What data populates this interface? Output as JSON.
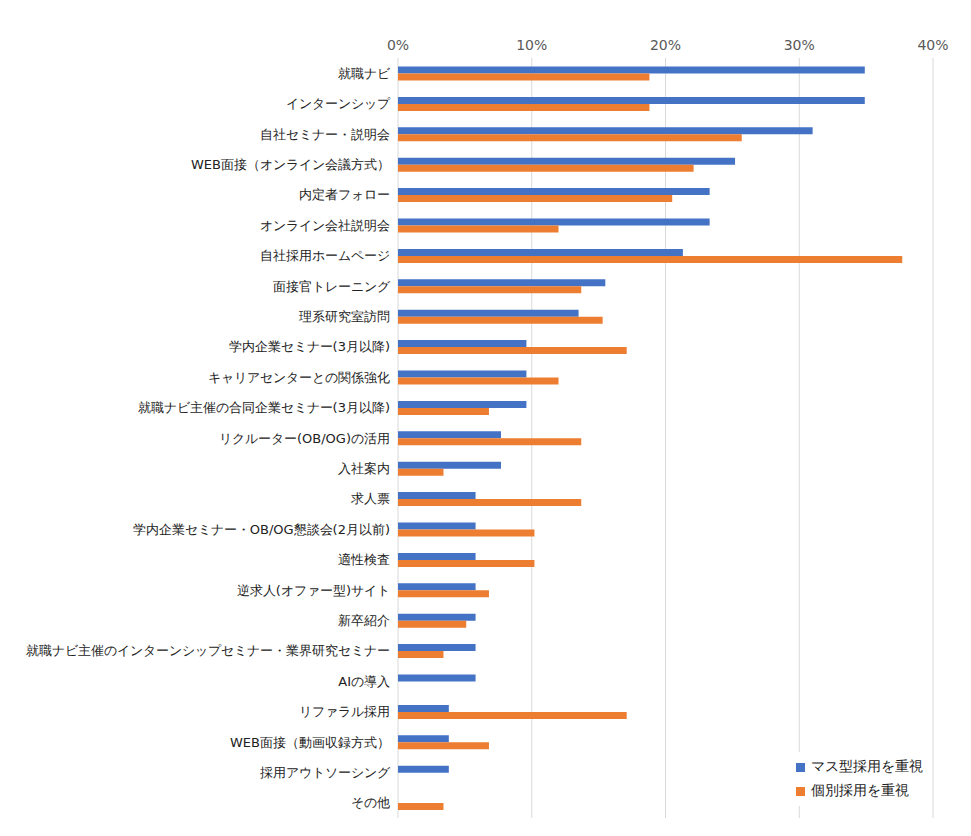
{
  "chart_data": {
    "type": "bar",
    "orientation": "horizontal",
    "grid": true,
    "legend": "bottom-right",
    "categories": [
      "就職ナビ",
      "インターンシップ",
      "自社セミナー・説明会",
      "WEB面接（オンライン会議方式）",
      "内定者フォロー",
      "オンライン会社説明会",
      "自社採用ホームページ",
      "面接官トレーニング",
      "理系研究室訪問",
      "学内企業セミナー(3月以降)",
      "キャリアセンターとの関係強化",
      "就職ナビ主催の合同企業セミナー(3月以降)",
      "リクルーター(OB/OG)の活用",
      "入社案内",
      "求人票",
      "学内企業セミナー・OB/OG懇談会(2月以前)",
      "適性検査",
      "逆求人(オファー型)サイト",
      "新卒紹介",
      "就職ナビ主催のインターンシップセミナー・業界研究セミナー",
      "AIの導入",
      "リファラル採用",
      "WEB面接（動画収録方式）",
      "採用アウトソーシング",
      "その他"
    ],
    "series": [
      {
        "name": "マス型採用を重視",
        "color": "#4472c4",
        "values": [
          34.9,
          34.9,
          31.0,
          25.2,
          23.3,
          23.3,
          21.3,
          15.5,
          13.5,
          9.6,
          9.6,
          9.6,
          7.7,
          7.7,
          5.8,
          5.8,
          5.8,
          5.8,
          5.8,
          5.8,
          5.8,
          3.8,
          3.8,
          3.8,
          0
        ]
      },
      {
        "name": "個別採用を重視",
        "color": "#ed7d31",
        "values": [
          18.8,
          18.8,
          25.7,
          22.1,
          20.5,
          12.0,
          37.7,
          13.7,
          15.3,
          17.1,
          12.0,
          6.8,
          13.7,
          3.4,
          13.7,
          10.2,
          10.2,
          6.8,
          5.1,
          3.4,
          0,
          17.1,
          6.8,
          0,
          3.4
        ]
      }
    ],
    "xlim": [
      0,
      40
    ],
    "xticks": [
      {
        "value": 0,
        "label": "0%"
      },
      {
        "value": 10,
        "label": "10%"
      },
      {
        "value": 20,
        "label": "20%"
      },
      {
        "value": 30,
        "label": "30%"
      },
      {
        "value": 40,
        "label": "40%"
      }
    ]
  }
}
